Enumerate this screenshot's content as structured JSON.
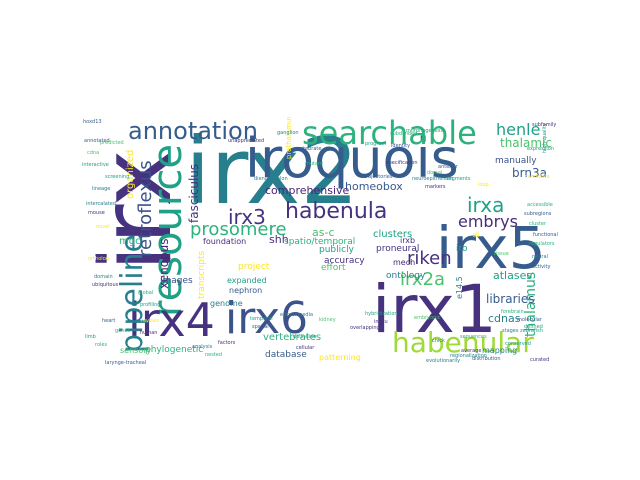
{
  "wordcloud": {
    "words": [
      {
        "text": "irx",
        "color": "#46327e"
      },
      {
        "text": "irx2",
        "color": "#277f8e"
      },
      {
        "text": "iroquois",
        "color": "#365c8d"
      },
      {
        "text": "resource",
        "color": "#1fa187"
      },
      {
        "text": "irx5",
        "color": "#365c8d"
      },
      {
        "text": "irx1",
        "color": "#46327e"
      },
      {
        "text": "irx4",
        "color": "#46327e"
      },
      {
        "text": "irx6",
        "color": "#3b528b"
      },
      {
        "text": "searchable",
        "color": "#2db27d"
      },
      {
        "text": "habenular",
        "color": "#a0da39"
      },
      {
        "text": "pipeline",
        "color": "#277f8e"
      },
      {
        "text": "annotation",
        "color": "#365c8d"
      },
      {
        "text": "habenula",
        "color": "#46327e"
      },
      {
        "text": "irx3",
        "color": "#46327e"
      },
      {
        "text": "prosomere",
        "color": "#2db27d"
      },
      {
        "text": "irxa",
        "color": "#1fa187"
      },
      {
        "text": "irx2a",
        "color": "#4ac16d"
      },
      {
        "text": "riken",
        "color": "#46327e"
      },
      {
        "text": "retroflexus",
        "color": "#3b528b"
      },
      {
        "text": "thalamus",
        "color": "#2db27d"
      },
      {
        "text": "embrys",
        "color": "#472d7b"
      },
      {
        "text": "henle",
        "color": "#1fa187"
      },
      {
        "text": "thalamic",
        "color": "#4ac16d"
      },
      {
        "text": "brn3a",
        "color": "#365c8d"
      },
      {
        "text": "fasciculus",
        "color": "#46327e"
      },
      {
        "text": "xenopus",
        "color": "#482576"
      },
      {
        "text": "libraries",
        "color": "#365c8d"
      },
      {
        "text": "cdnas",
        "color": "#277f8e"
      },
      {
        "text": "atlases",
        "color": "#1fa187"
      },
      {
        "text": "comprehensive",
        "color": "#482576"
      },
      {
        "text": "homeobox",
        "color": "#365c8d"
      },
      {
        "text": "as-c",
        "color": "#4ac16d"
      },
      {
        "text": "shh",
        "color": "#46327e"
      },
      {
        "text": "vertebrates",
        "color": "#2db27d"
      },
      {
        "text": "clusters",
        "color": "#1fa187"
      },
      {
        "text": "manually",
        "color": "#3b528b"
      },
      {
        "text": "proneural",
        "color": "#46327e"
      },
      {
        "text": "iro",
        "color": "#1fa187"
      },
      {
        "text": "mgc",
        "color": "#2db27d"
      },
      {
        "text": "ontology",
        "color": "#277f8e"
      },
      {
        "text": "accuracy",
        "color": "#46327e"
      },
      {
        "text": "publicly",
        "color": "#1fa187"
      },
      {
        "text": "mech",
        "color": "#482576"
      },
      {
        "text": "effort",
        "color": "#4ac16d"
      },
      {
        "text": "project",
        "color": "#fde725"
      },
      {
        "text": "expanded",
        "color": "#1fa187"
      },
      {
        "text": "nephron",
        "color": "#365c8d"
      },
      {
        "text": "genome",
        "color": "#277f8e"
      },
      {
        "text": "images",
        "color": "#3b528b"
      },
      {
        "text": "foundation",
        "color": "#472d7b"
      },
      {
        "text": "spatio/temporal",
        "color": "#2db27d"
      },
      {
        "text": "database",
        "color": "#365c8d"
      },
      {
        "text": "patterning",
        "color": "#fde725"
      },
      {
        "text": "mapping",
        "color": "#277f8e"
      },
      {
        "text": "phylogenetic",
        "color": "#2db27d"
      },
      {
        "text": "sensory",
        "color": "#4ac16d"
      },
      {
        "text": "organized",
        "color": "#fde725"
      },
      {
        "text": "transcripts",
        "color": "#fde725"
      },
      {
        "text": "e14.5",
        "color": "#277f8e"
      },
      {
        "text": "irxb",
        "color": "#472d7b"
      },
      {
        "text": "identity",
        "color": "#365c8d"
      },
      {
        "text": "program",
        "color": "#1fa187"
      },
      {
        "text": "forebrain",
        "color": "#2db27d"
      },
      {
        "text": "evolutionarily",
        "color": "#277f8e"
      },
      {
        "text": "regionalization",
        "color": "#277f8e"
      },
      {
        "text": "larynge-tracheal",
        "color": "#365c8d"
      },
      {
        "text": "curated",
        "color": "#46327e"
      },
      {
        "text": "global",
        "color": "#2db27d"
      },
      {
        "text": "profiling",
        "color": "#1fa187"
      },
      {
        "text": "embryonic",
        "color": "#4ac16d"
      },
      {
        "text": "defined",
        "color": "#1fa187"
      },
      {
        "text": "molecular",
        "color": "#365c8d"
      },
      {
        "text": "zebrafish",
        "color": "#1fa187"
      },
      {
        "text": "genes",
        "color": "#2db27d"
      },
      {
        "text": "specification",
        "color": "#46327e"
      },
      {
        "text": "prethalamus",
        "color": "#fde725"
      },
      {
        "text": "ganglion",
        "color": "#277f8e"
      },
      {
        "text": "vertebrate",
        "color": "#365c8d"
      },
      {
        "text": "mutant",
        "color": "#2db27d"
      },
      {
        "text": "unappreciated",
        "color": "#472d7b"
      },
      {
        "text": "encyclopedia",
        "color": "#277f8e"
      },
      {
        "text": "delineate",
        "color": "#1fa187"
      },
      {
        "text": "cellular",
        "color": "#46327e"
      },
      {
        "text": "trajectories",
        "color": "#365c8d"
      },
      {
        "text": "kidney",
        "color": "#4ac16d"
      },
      {
        "text": "zli",
        "color": "#fde725"
      },
      {
        "text": "hoxd13",
        "color": "#365c8d"
      },
      {
        "text": "accessible",
        "color": "#2db27d"
      },
      {
        "text": "lineage",
        "color": "#277f8e"
      },
      {
        "text": "expression",
        "color": "#1fa187"
      },
      {
        "text": "overlapping",
        "color": "#46327e"
      },
      {
        "text": "candidate",
        "color": "#fde725"
      },
      {
        "text": "high-quality",
        "color": "#1fa187"
      },
      {
        "text": "functional",
        "color": "#365c8d"
      },
      {
        "text": "regulators",
        "color": "#2db27d"
      },
      {
        "text": "neural",
        "color": "#277f8e"
      },
      {
        "text": "subfamily",
        "color": "#46327e"
      },
      {
        "text": "predicted",
        "color": "#4ac16d"
      },
      {
        "text": "screening",
        "color": "#1fa187"
      },
      {
        "text": "activity",
        "color": "#365c8d"
      },
      {
        "text": "novel",
        "color": "#fde725"
      },
      {
        "text": "domain",
        "color": "#277f8e"
      },
      {
        "text": "ubiquitous",
        "color": "#46327e"
      },
      {
        "text": "subdivided",
        "color": "#2db27d"
      },
      {
        "text": "morphogenesis",
        "color": "#1fa187"
      },
      {
        "text": "anterior",
        "color": "#365c8d"
      },
      {
        "text": "dorsal",
        "color": "#4ac16d"
      },
      {
        "text": "neuroepithelium",
        "color": "#277f8e"
      },
      {
        "text": "segments",
        "color": "#1fa187"
      },
      {
        "text": "markers",
        "color": "#46327e"
      },
      {
        "text": "loop",
        "color": "#fde725"
      },
      {
        "text": "subregions",
        "color": "#365c8d"
      },
      {
        "text": "cluster",
        "color": "#2db27d"
      },
      {
        "text": "diencephalon",
        "color": "#277f8e"
      },
      {
        "text": "hybridization",
        "color": "#1fa187"
      },
      {
        "text": "insitu",
        "color": "#46327e"
      },
      {
        "text": "annotated",
        "color": "#365c8d"
      },
      {
        "text": "cdna",
        "color": "#4ac16d"
      },
      {
        "text": "interactive",
        "color": "#1fa187"
      },
      {
        "text": "intercalated",
        "color": "#277f8e"
      },
      {
        "text": "mouse",
        "color": "#46327e"
      },
      {
        "text": "ortholog",
        "color": "#fde725"
      },
      {
        "text": "roles",
        "color": "#2db27d"
      },
      {
        "text": "heart",
        "color": "#365c8d"
      },
      {
        "text": "limb",
        "color": "#1fa187"
      },
      {
        "text": "stages",
        "color": "#277f8e"
      },
      {
        "text": "average",
        "color": "#46327e"
      },
      {
        "text": "tissue",
        "color": "#4ac16d"
      },
      {
        "text": "distribution",
        "color": "#365c8d"
      },
      {
        "text": "conserved",
        "color": "#1fa187"
      },
      {
        "text": "sequences",
        "color": "#2db27d"
      },
      {
        "text": "chick",
        "color": "#277f8e"
      },
      {
        "text": "human",
        "color": "#46327e"
      },
      {
        "text": "reveals",
        "color": "#fde725"
      },
      {
        "text": "temporal",
        "color": "#1fa187"
      },
      {
        "text": "spatial",
        "color": "#365c8d"
      },
      {
        "text": "analysis",
        "color": "#277f8e"
      },
      {
        "text": "nested",
        "color": "#2db27d"
      },
      {
        "text": "factors",
        "color": "#46327e"
      }
    ]
  }
}
